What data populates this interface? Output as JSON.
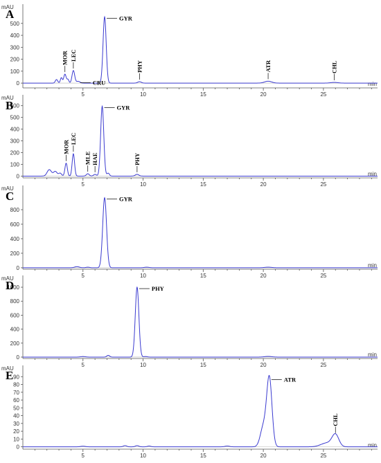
{
  "chart_data": [
    {
      "type": "line",
      "panel": "A",
      "y_unit": "mAU",
      "x_unit": "min",
      "xlim": [
        0,
        29.5
      ],
      "ylim": [
        -40,
        580
      ],
      "x_ticks": [
        5,
        10,
        15,
        20,
        25
      ],
      "y_ticks": [
        0,
        100,
        200,
        300,
        400,
        500
      ],
      "peaks": [
        {
          "label": "MOR",
          "time": 3.5,
          "height": 75,
          "width": 0.1
        },
        {
          "label": "LEC",
          "time": 4.2,
          "height": 105,
          "width": 0.11
        },
        {
          "label": "CRU",
          "time": 4.6,
          "height": 15,
          "width": 0.15
        },
        {
          "label": "GYR",
          "time": 6.8,
          "height": 555,
          "width": 0.13
        },
        {
          "label": "PHY",
          "time": 9.7,
          "height": 12,
          "width": 0.15
        },
        {
          "label": "ATR",
          "time": 20.4,
          "height": 16,
          "width": 0.3
        },
        {
          "label": "CHL",
          "time": 25.9,
          "height": 6,
          "width": 0.3
        }
      ],
      "minor_peaks": [
        {
          "time": 2.8,
          "height": 30,
          "width": 0.1
        },
        {
          "time": 3.2,
          "height": 45,
          "width": 0.08
        },
        {
          "time": 3.75,
          "height": 30,
          "width": 0.08
        }
      ]
    },
    {
      "type": "line",
      "panel": "B",
      "y_unit": "mAU",
      "x_unit": "min",
      "xlim": [
        0,
        29.5
      ],
      "ylim": [
        -15,
        610
      ],
      "x_ticks": [
        5,
        10,
        15,
        20,
        25
      ],
      "y_ticks": [
        0,
        100,
        200,
        300,
        400,
        500,
        600
      ],
      "peaks": [
        {
          "label": "MOR",
          "time": 3.6,
          "height": 110,
          "width": 0.1
        },
        {
          "label": "LEC",
          "time": 4.2,
          "height": 190,
          "width": 0.1
        },
        {
          "label": "MLE",
          "time": 5.4,
          "height": 20,
          "width": 0.12
        },
        {
          "label": "HAE",
          "time": 6.0,
          "height": 15,
          "width": 0.12
        },
        {
          "label": "GYR",
          "time": 6.6,
          "height": 595,
          "width": 0.13
        },
        {
          "label": "PHY",
          "time": 9.5,
          "height": 15,
          "width": 0.15
        }
      ],
      "minor_peaks": [
        {
          "time": 2.2,
          "height": 55,
          "width": 0.18
        },
        {
          "time": 2.7,
          "height": 40,
          "width": 0.15
        },
        {
          "time": 3.1,
          "height": 25,
          "width": 0.12
        },
        {
          "time": 7.1,
          "height": 25,
          "width": 0.1
        }
      ]
    },
    {
      "type": "line",
      "panel": "C",
      "y_unit": "mAU",
      "x_unit": "min",
      "xlim": [
        0,
        29.5
      ],
      "ylim": [
        -20,
        1000
      ],
      "x_ticks": [
        5,
        10,
        15,
        20,
        25
      ],
      "y_ticks": [
        0,
        200,
        400,
        600,
        800
      ],
      "peaks": [
        {
          "label": "GYR",
          "time": 6.8,
          "height": 965,
          "width": 0.16
        }
      ],
      "minor_peaks": [
        {
          "time": 4.5,
          "height": 15,
          "width": 0.2
        },
        {
          "time": 5.4,
          "height": 8,
          "width": 0.15
        },
        {
          "time": 10.3,
          "height": 8,
          "width": 0.2
        },
        {
          "time": 20.4,
          "height": 8,
          "width": 0.3
        }
      ]
    },
    {
      "type": "line",
      "panel": "D",
      "y_unit": "mAU",
      "x_unit": "min",
      "xlim": [
        0,
        29.5
      ],
      "ylim": [
        -20,
        1030
      ],
      "x_ticks": [
        5,
        10,
        15,
        20,
        25
      ],
      "y_ticks": [
        0,
        200,
        400,
        600,
        800,
        1000
      ],
      "peaks": [
        {
          "label": "PHY",
          "time": 9.5,
          "height": 1000,
          "width": 0.15
        }
      ],
      "minor_peaks": [
        {
          "time": 5.0,
          "height": 8,
          "width": 0.2
        },
        {
          "time": 7.1,
          "height": 25,
          "width": 0.12
        },
        {
          "time": 10.2,
          "height": 8,
          "width": 0.15
        },
        {
          "time": 20.4,
          "height": 10,
          "width": 0.3
        }
      ]
    },
    {
      "type": "line",
      "panel": "E",
      "y_unit": "mAU",
      "x_unit": "min",
      "xlim": [
        0,
        29.5
      ],
      "ylim": [
        -3,
        92
      ],
      "x_ticks": [
        5,
        10,
        15,
        20,
        25
      ],
      "y_ticks": [
        0,
        10,
        20,
        30,
        40,
        50,
        60,
        70,
        80,
        90
      ],
      "peaks": [
        {
          "label": "ATR",
          "time": 20.5,
          "height": 88,
          "width": 0.22
        },
        {
          "label": "CHL",
          "time": 26.0,
          "height": 15,
          "width": 0.28
        }
      ],
      "minor_peaks": [
        {
          "time": 20.0,
          "height": 25,
          "width": 0.25
        },
        {
          "time": 25.3,
          "height": 5,
          "width": 0.5
        },
        {
          "time": 8.5,
          "height": 1.5,
          "width": 0.15
        },
        {
          "time": 9.5,
          "height": 1.5,
          "width": 0.15
        },
        {
          "time": 10.5,
          "height": 1,
          "width": 0.15
        },
        {
          "time": 17.0,
          "height": 1,
          "width": 0.2
        },
        {
          "time": 5.0,
          "height": 0.8,
          "width": 0.2
        }
      ]
    }
  ],
  "colors": {
    "trace": "#3a3ad0",
    "axis": "#555555"
  }
}
